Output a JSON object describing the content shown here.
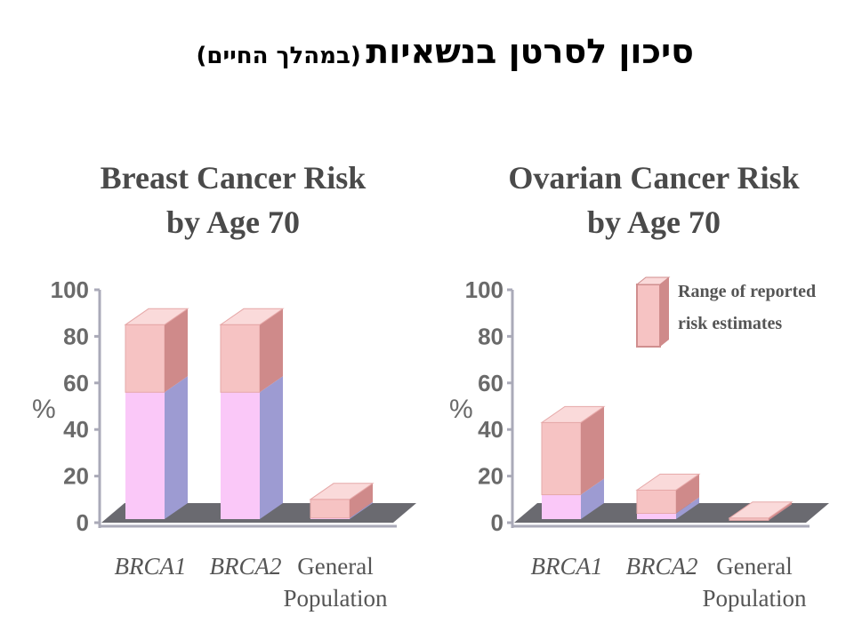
{
  "slide": {
    "title_main": "סיכון לסרטן בנשאיות",
    "title_sub": "(במהלך החיים)"
  },
  "colors": {
    "range_front": "#f6c3c3",
    "range_top": "#fadada",
    "range_side": "#cf8a8a",
    "lower_front": "#fac8f8",
    "lower_side": "#9d9bd2",
    "floor": "#6a6a70",
    "axis": "#aaaab8",
    "text": "#555555"
  },
  "legend": {
    "label_line1": "Range of reported",
    "label_line2": "risk estimates"
  },
  "chart_data": [
    {
      "type": "bar",
      "title_line1": "Breast Cancer Risk",
      "title_line2": "by Age 70",
      "ylabel": "%",
      "ylim": [
        0,
        100
      ],
      "yticks": [
        "0",
        "20",
        "40",
        "60",
        "80",
        "100"
      ],
      "categories": [
        {
          "line1": "BRCA1",
          "line2": "",
          "italic": true
        },
        {
          "line1": "BRCA2",
          "line2": "",
          "italic": true
        },
        {
          "line1": "General",
          "line2": "Population",
          "italic": false
        }
      ],
      "series": [
        {
          "name": "Range of reported risk estimates",
          "low": [
            56,
            56,
            2
          ],
          "high": [
            85,
            85,
            10
          ]
        }
      ]
    },
    {
      "type": "bar",
      "title_line1": "Ovarian Cancer Risk",
      "title_line2": "by Age 70",
      "ylabel": "%",
      "ylim": [
        0,
        100
      ],
      "yticks": [
        "0",
        "20",
        "40",
        "60",
        "80",
        "100"
      ],
      "categories": [
        {
          "line1": "BRCA1",
          "line2": "",
          "italic": true
        },
        {
          "line1": "BRCA2",
          "line2": "",
          "italic": true
        },
        {
          "line1": "General",
          "line2": "Population",
          "italic": false
        }
      ],
      "series": [
        {
          "name": "Range of reported risk estimates",
          "low": [
            12,
            4,
            1
          ],
          "high": [
            43,
            14,
            2
          ]
        }
      ]
    }
  ]
}
